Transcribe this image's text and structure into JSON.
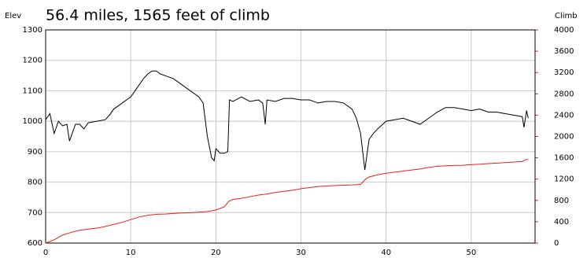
{
  "chart_data": {
    "type": "line",
    "title": "56.4 miles, 1565 feet of climb",
    "ylabel": "Elev",
    "y2label": "Climb",
    "xlim": [
      0,
      57.5
    ],
    "xticks": [
      0,
      10,
      20,
      30,
      40,
      50
    ],
    "ylim": [
      600,
      1300
    ],
    "yticks": [
      600,
      700,
      800,
      900,
      1000,
      1100,
      1200,
      1300
    ],
    "y2lim": [
      0,
      4000
    ],
    "y2ticks": [
      0,
      400,
      800,
      1200,
      1600,
      2000,
      2400,
      2800,
      3200,
      3600,
      4000
    ],
    "grid": true,
    "y2color": "#e8201c",
    "series": [
      {
        "color": "#000000",
        "x": [
          0,
          0.5,
          1,
          1.5,
          2,
          2.5,
          2.8,
          3.5,
          4,
          4.5,
          5,
          6,
          7,
          7.5,
          8,
          9,
          10,
          10.5,
          11,
          11.5,
          12,
          12.5,
          13,
          13.5,
          14,
          15,
          16,
          17,
          18,
          18.5,
          19,
          19.5,
          19.8,
          20,
          20.5,
          21,
          21.4,
          21.6,
          22,
          23,
          24,
          25,
          25.5,
          25.8,
          26,
          27,
          28,
          29,
          30,
          31,
          32,
          33,
          34,
          35,
          36,
          36.5,
          37,
          37.5,
          37.8,
          38,
          38.5,
          39,
          40,
          41,
          42,
          43,
          44,
          45,
          46,
          47,
          48,
          49,
          50,
          51,
          52,
          53,
          54,
          55,
          56,
          56.2,
          56.5,
          56.7
        ],
        "values": [
          1005,
          1025,
          960,
          1000,
          985,
          990,
          935,
          990,
          990,
          975,
          995,
          1000,
          1005,
          1020,
          1040,
          1060,
          1080,
          1100,
          1120,
          1140,
          1155,
          1165,
          1165,
          1155,
          1150,
          1140,
          1120,
          1100,
          1080,
          1060,
          950,
          880,
          870,
          910,
          895,
          895,
          900,
          1070,
          1065,
          1080,
          1065,
          1070,
          1060,
          990,
          1070,
          1065,
          1075,
          1075,
          1070,
          1070,
          1060,
          1065,
          1065,
          1060,
          1040,
          1010,
          960,
          840,
          900,
          940,
          960,
          975,
          1000,
          1005,
          1010,
          1000,
          990,
          1010,
          1030,
          1045,
          1045,
          1040,
          1035,
          1040,
          1030,
          1030,
          1025,
          1020,
          1015,
          980,
          1035,
          1010
        ]
      },
      {
        "color": "#e8201c",
        "axis": "y2",
        "x": [
          0,
          1,
          2,
          3,
          4,
          5,
          6,
          7,
          8,
          9,
          10,
          11,
          12,
          13,
          14,
          15,
          16,
          17,
          18,
          19,
          20,
          21,
          21.5,
          22,
          23,
          24,
          25,
          26,
          27,
          28,
          29,
          30,
          31,
          32,
          33,
          34,
          35,
          36,
          37,
          37.6,
          38,
          39,
          40,
          41,
          42,
          43,
          44,
          45,
          46,
          47,
          48,
          49,
          50,
          51,
          52,
          53,
          54,
          55,
          56,
          56.4,
          56.7
        ],
        "values": [
          0,
          60,
          150,
          200,
          240,
          260,
          280,
          310,
          350,
          390,
          440,
          490,
          520,
          540,
          545,
          555,
          565,
          570,
          580,
          590,
          620,
          680,
          780,
          820,
          840,
          870,
          900,
          920,
          950,
          970,
          990,
          1020,
          1040,
          1060,
          1070,
          1080,
          1085,
          1090,
          1100,
          1200,
          1240,
          1280,
          1310,
          1330,
          1350,
          1370,
          1390,
          1420,
          1440,
          1450,
          1455,
          1460,
          1470,
          1480,
          1490,
          1500,
          1510,
          1520,
          1530,
          1565,
          1570
        ]
      }
    ]
  }
}
